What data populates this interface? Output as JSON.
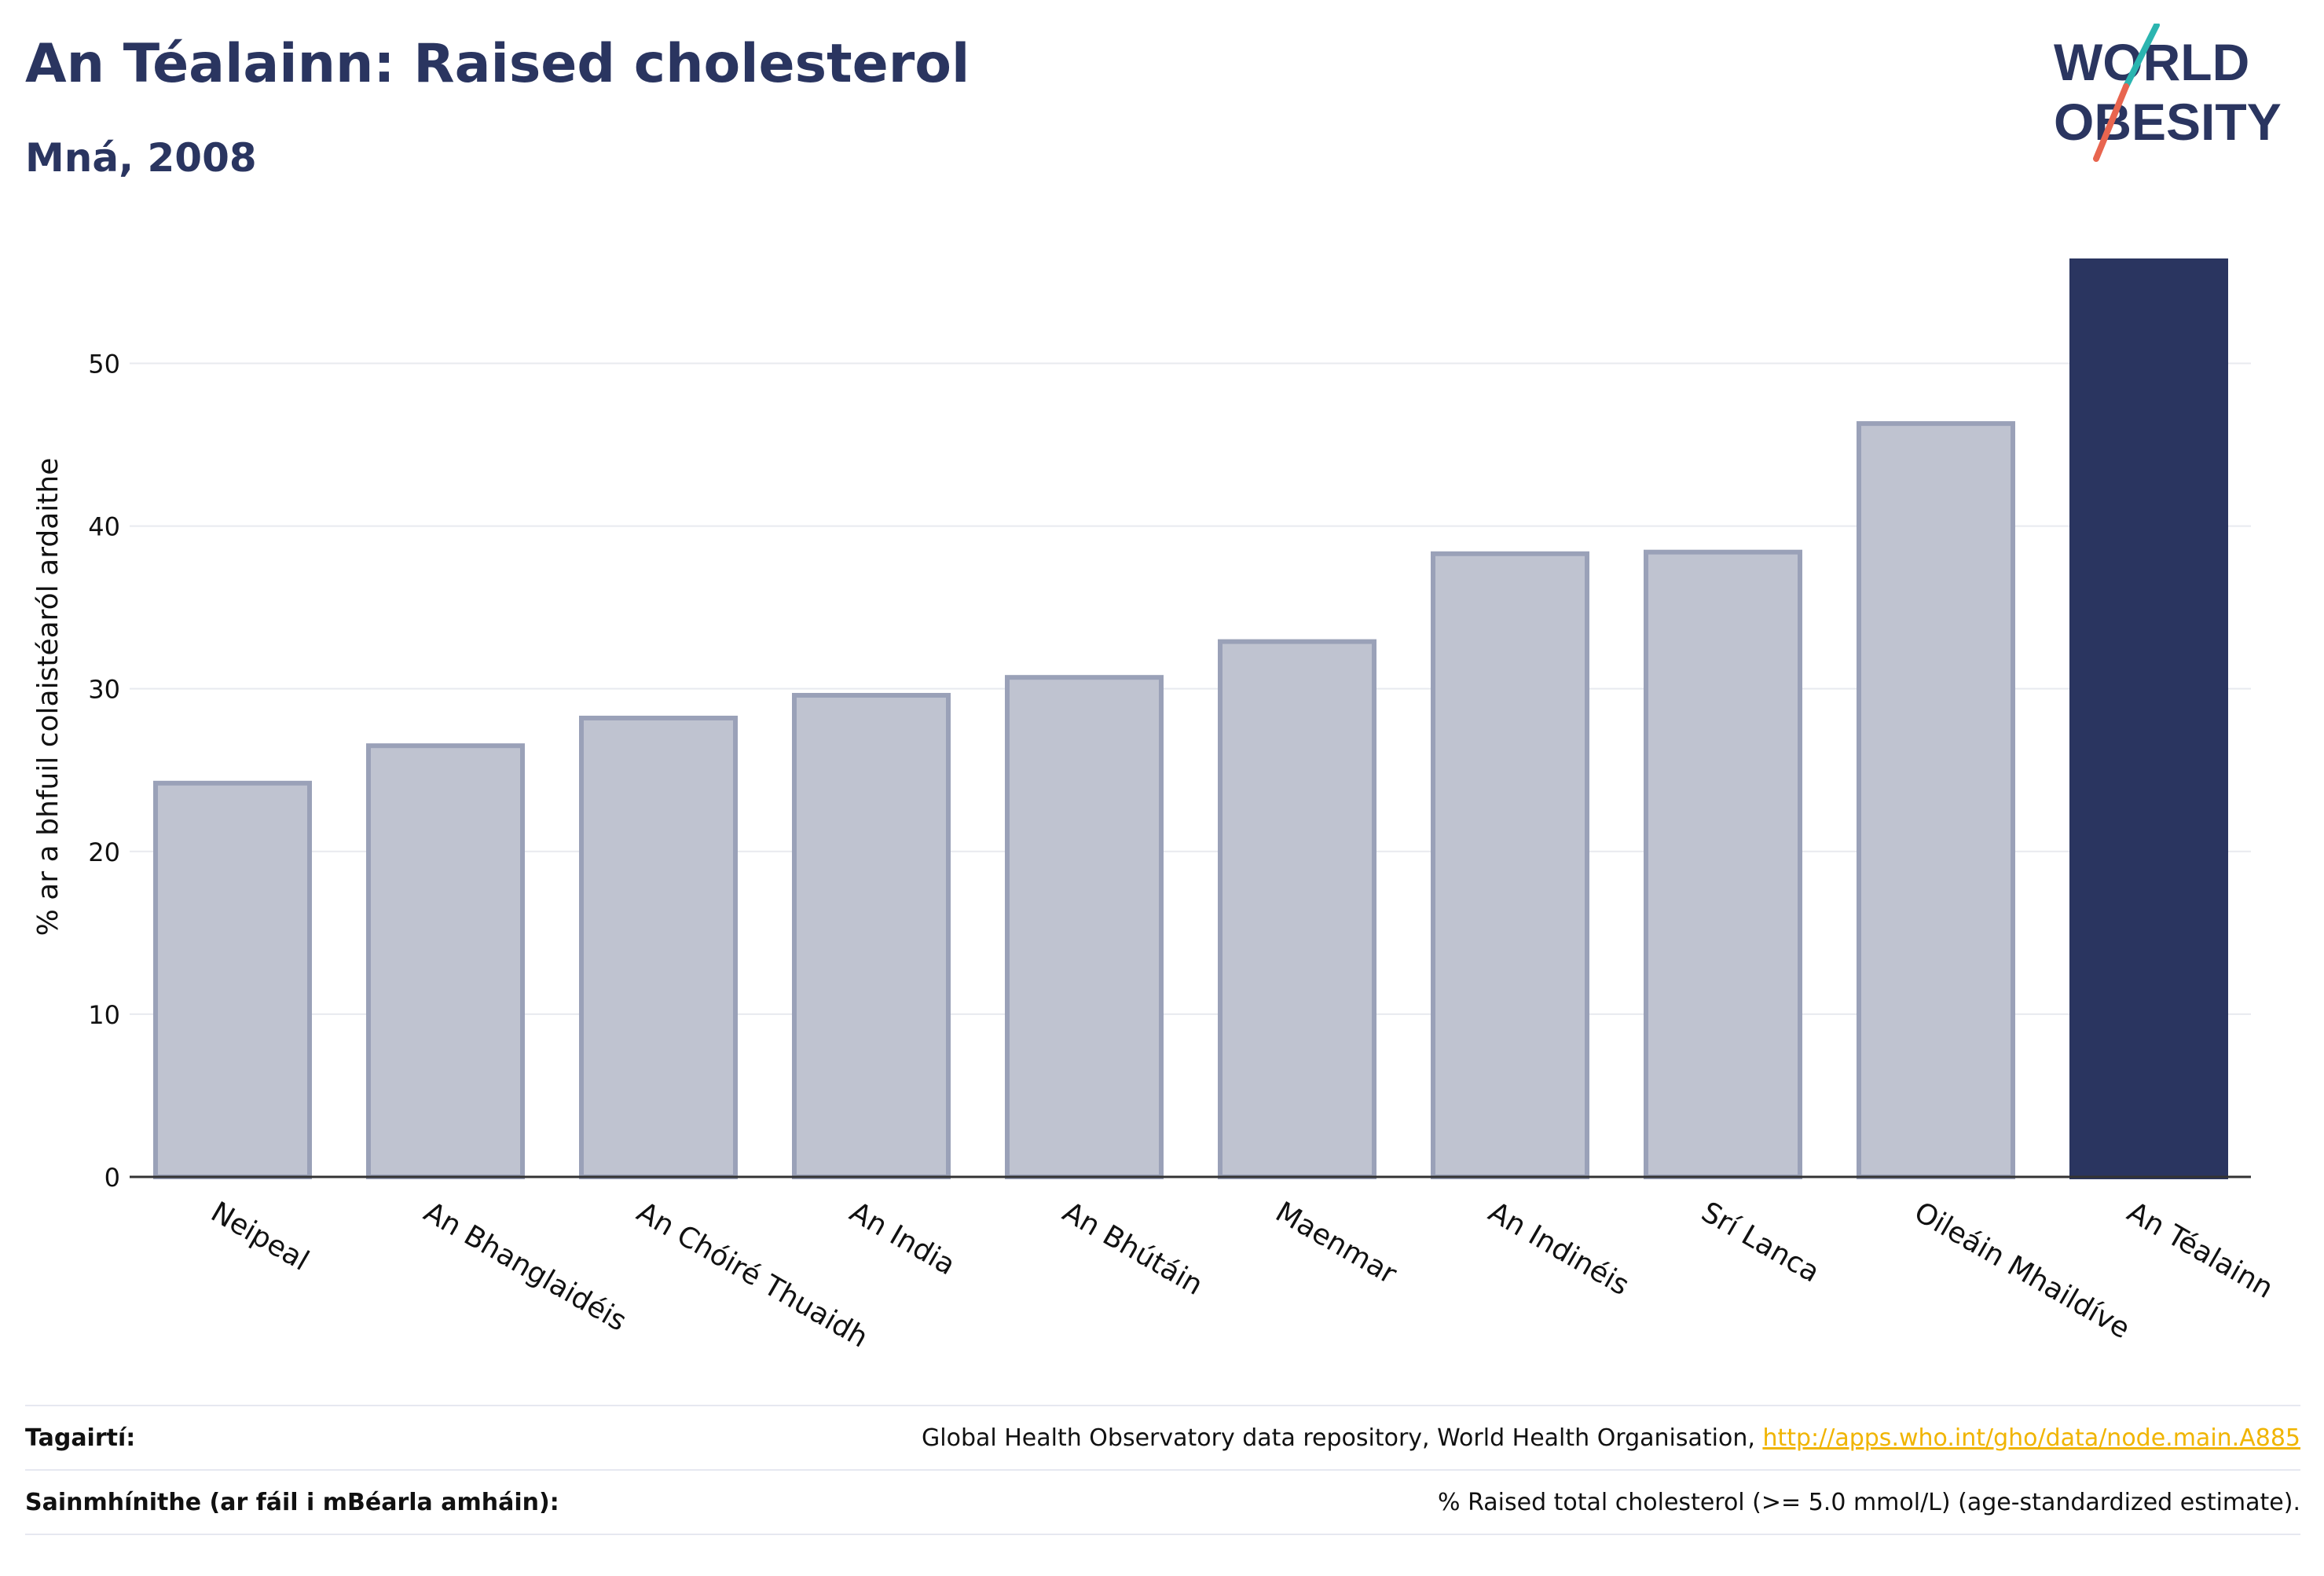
{
  "title": "An Téalainn: Raised cholesterol",
  "subtitle": "Mná, 2008",
  "logo": {
    "line1": "WORLD",
    "line2": "OBESITY",
    "text_color": "#2a3560",
    "accent_teal": "#2bb5b0",
    "accent_red": "#e8654f"
  },
  "colors": {
    "highlight": "#2a3560",
    "other": "#bfc3d0",
    "other_stroke": "#9aa1b8",
    "grid": "#e8eaef",
    "axis": "#333333"
  },
  "chart_data": {
    "type": "bar",
    "categories": [
      "Neipeal",
      "An Bhanglaidéis",
      "An Chóiré Thuaidh",
      "An India",
      "An Bhútáin",
      "Maenmar",
      "An Indinéis",
      "Srí Lanca",
      "Oileáin Mhaildíve",
      "An Téalainn"
    ],
    "values": [
      24.2,
      26.5,
      28.2,
      29.6,
      30.7,
      32.9,
      38.3,
      38.4,
      46.3,
      56.3
    ],
    "highlight_index": 9,
    "ylabel": "% ar a bhfuil colaistéaról ardaithe",
    "ylim": [
      0,
      56.3
    ],
    "yticks": [
      0,
      10,
      20,
      30,
      40,
      50
    ],
    "grid": true
  },
  "footer": {
    "references_label": "Tagairtí:",
    "references_text": "Global Health Observatory data repository, World Health Organisation, ",
    "references_link": "http://apps.who.int/gho/data/node.main.A885",
    "definitions_label": "Sainmhínithe (ar fáil i mBéarla amháin):",
    "definitions_text": "% Raised total cholesterol (>= 5.0 mmol/L) (age-standardized estimate)."
  }
}
